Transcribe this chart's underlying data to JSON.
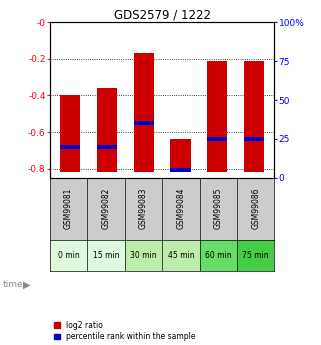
{
  "title": "GDS2579 / 1222",
  "samples": [
    "GSM99081",
    "GSM99082",
    "GSM99083",
    "GSM99084",
    "GSM99085",
    "GSM99086"
  ],
  "time_labels": [
    "0 min",
    "15 min",
    "30 min",
    "45 min",
    "60 min",
    "75 min"
  ],
  "time_colors": [
    "#ddfadd",
    "#ddfadd",
    "#bbeeaa",
    "#bbeeaa",
    "#66dd66",
    "#44cc44"
  ],
  "log2_values": [
    -0.4,
    -0.36,
    -0.17,
    -0.64,
    -0.21,
    -0.21
  ],
  "bar_bottom": -0.82,
  "percentile_values": [
    20,
    20,
    35,
    5,
    25,
    25
  ],
  "ylim_left": [
    -0.85,
    0.0
  ],
  "ylim_right": [
    0,
    100
  ],
  "yticks_left": [
    0.0,
    -0.2,
    -0.4,
    -0.6,
    -0.8
  ],
  "yticks_left_labels": [
    "-0",
    "-0.2",
    "-0.4",
    "-0.6",
    "-0.8"
  ],
  "yticks_right": [
    0,
    25,
    50,
    75,
    100
  ],
  "yticks_right_labels": [
    "0",
    "25",
    "50",
    "75",
    "100%"
  ],
  "bar_color": "#cc0000",
  "blue_color": "#0000cc",
  "bar_width": 0.55,
  "bg_color": "#ffffff",
  "sample_bg": "#cccccc"
}
